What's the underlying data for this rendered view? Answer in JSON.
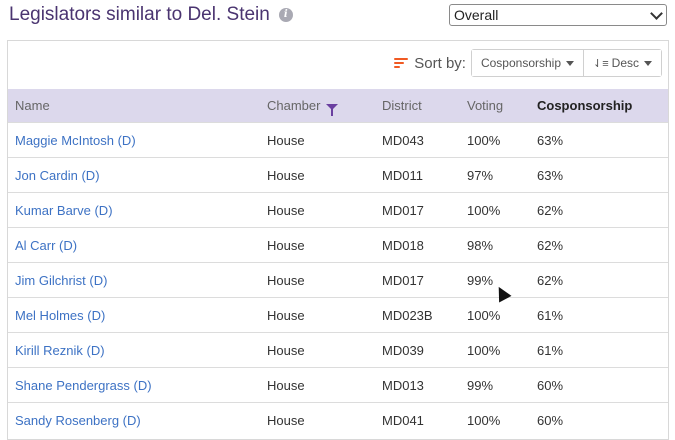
{
  "header": {
    "title": "Legislators similar to Del. Stein",
    "info_icon": "info-icon"
  },
  "view_select": {
    "value": "Overall"
  },
  "sort": {
    "label": "Sort by:",
    "field": "Cosponsorship",
    "order": "Desc",
    "accent": "#f05a23"
  },
  "table": {
    "columns": [
      "Name",
      "Chamber",
      "District",
      "Voting",
      "Cosponsorship"
    ],
    "active_column": "Cosponsorship",
    "rows": [
      {
        "name": "Maggie McIntosh (D)",
        "chamber": "House",
        "district": "MD043",
        "voting": "100%",
        "cosponsorship": "63%"
      },
      {
        "name": "Jon Cardin (D)",
        "chamber": "House",
        "district": "MD011",
        "voting": "97%",
        "cosponsorship": "63%"
      },
      {
        "name": "Kumar Barve (D)",
        "chamber": "House",
        "district": "MD017",
        "voting": "100%",
        "cosponsorship": "62%"
      },
      {
        "name": "Al Carr (D)",
        "chamber": "House",
        "district": "MD018",
        "voting": "98%",
        "cosponsorship": "62%"
      },
      {
        "name": "Jim Gilchrist (D)",
        "chamber": "House",
        "district": "MD017",
        "voting": "99%",
        "cosponsorship": "62%"
      },
      {
        "name": "Mel Holmes (D)",
        "chamber": "House",
        "district": "MD023B",
        "voting": "100%",
        "cosponsorship": "61%"
      },
      {
        "name": "Kirill Reznik (D)",
        "chamber": "House",
        "district": "MD039",
        "voting": "100%",
        "cosponsorship": "61%"
      },
      {
        "name": "Shane Pendergrass (D)",
        "chamber": "House",
        "district": "MD013",
        "voting": "99%",
        "cosponsorship": "60%"
      },
      {
        "name": "Sandy Rosenberg (D)",
        "chamber": "House",
        "district": "MD041",
        "voting": "100%",
        "cosponsorship": "60%"
      }
    ]
  }
}
